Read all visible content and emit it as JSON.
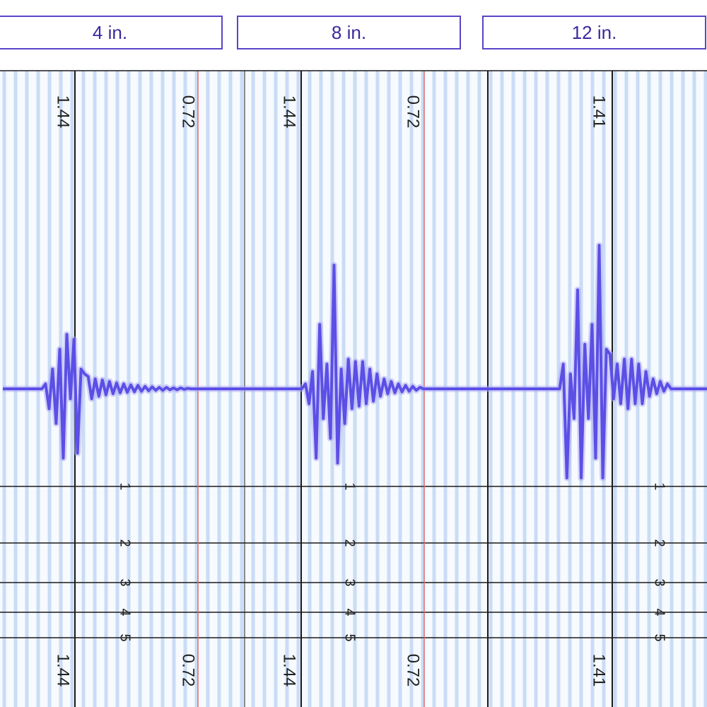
{
  "tabs": [
    {
      "label": "4 in."
    },
    {
      "label": "8 in."
    },
    {
      "label": "12 in."
    }
  ],
  "colors": {
    "waveform": "#5b4fe6",
    "waveform_glow": "#a9a3f5",
    "grid_minor": "#bcd3f2",
    "red_line": "#e06a6a",
    "dark_line": "#1a1a1a",
    "tab_border": "#5a45c8",
    "tab_text": "#3a2a9e"
  },
  "chart_data": [
    {
      "type": "line",
      "title": "4 in.",
      "top_labels": [
        "1.44",
        "0.72"
      ],
      "bottom_labels": [
        "1.44",
        "0.72"
      ],
      "depth_labels": [
        "1",
        "2",
        "3",
        "4",
        "5"
      ],
      "x": [
        0,
        5,
        10,
        15,
        20,
        25,
        30,
        35,
        40,
        45,
        50,
        55,
        60,
        65,
        70,
        75,
        80,
        85,
        90,
        95,
        100,
        105,
        110,
        115,
        120,
        125,
        130,
        135,
        140,
        145,
        150,
        155,
        160,
        165,
        170,
        175,
        180,
        185,
        190,
        195,
        200,
        205,
        210,
        215,
        220,
        225,
        230,
        235,
        240,
        245,
        250,
        255,
        260,
        265,
        270,
        275,
        280,
        285,
        290,
        295,
        300,
        305,
        310,
        315,
        320,
        325,
        330,
        335,
        340
      ],
      "y": [
        0,
        0,
        0,
        0,
        0,
        0,
        0,
        0,
        0,
        0,
        0,
        0,
        0.1,
        -0.4,
        0.4,
        -0.7,
        0.8,
        -1.4,
        1.1,
        -0.2,
        1.0,
        -1.3,
        0.4,
        0.3,
        0.25,
        -0.2,
        0.2,
        -0.15,
        0.18,
        -0.12,
        0.15,
        -0.1,
        0.12,
        -0.08,
        0.1,
        -0.07,
        0.08,
        -0.06,
        0.07,
        -0.05,
        0.05,
        -0.04,
        0.04,
        -0.03,
        0.03,
        -0.03,
        0.03,
        -0.02,
        0.02,
        -0.02,
        0.02,
        -0.01,
        0.01,
        0,
        0,
        0,
        0,
        0,
        0,
        0,
        0,
        0,
        0,
        0,
        0,
        0,
        0,
        0,
        0
      ],
      "ylim": [
        -2,
        2
      ]
    },
    {
      "type": "line",
      "title": "8 in.",
      "top_labels": [
        "1.44",
        "0.72"
      ],
      "bottom_labels": [
        "1.44",
        "0.72"
      ],
      "depth_labels": [
        "1",
        "2",
        "3",
        "4",
        "5"
      ],
      "x": [
        0,
        5,
        10,
        15,
        20,
        25,
        30,
        35,
        40,
        45,
        50,
        55,
        60,
        65,
        70,
        75,
        80,
        85,
        90,
        95,
        100,
        105,
        110,
        115,
        120,
        125,
        130,
        135,
        140,
        145,
        150,
        155,
        160,
        165,
        170,
        175,
        180,
        185,
        190,
        195,
        200,
        205,
        210,
        215,
        220,
        225,
        230,
        235,
        240,
        245,
        250,
        255,
        260,
        265,
        270,
        275,
        280,
        285,
        290,
        295,
        300,
        305,
        310,
        315,
        320,
        325,
        330,
        335,
        340
      ],
      "y": [
        0,
        0,
        0,
        0,
        0,
        0,
        0,
        0,
        0,
        0,
        0,
        0,
        0,
        0,
        0,
        0,
        0,
        0.1,
        -0.3,
        0.35,
        -1.4,
        1.3,
        -0.6,
        0.5,
        -1.0,
        2.5,
        -1.5,
        0.4,
        -0.7,
        0.6,
        -0.4,
        0.55,
        -0.35,
        0.55,
        -0.3,
        0.4,
        -0.25,
        0.3,
        -0.15,
        0.2,
        -0.1,
        0.15,
        -0.08,
        0.1,
        -0.06,
        0.07,
        -0.05,
        0.05,
        -0.03,
        0.03,
        0,
        0,
        0,
        0,
        0,
        0,
        0,
        0,
        0,
        0,
        0,
        0,
        0,
        0,
        0,
        0,
        0,
        0,
        0
      ],
      "ylim": [
        -2,
        2
      ]
    },
    {
      "type": "line",
      "title": "12 in.",
      "top_labels": [
        "1.41"
      ],
      "bottom_labels": [
        "1.41"
      ],
      "depth_labels": [
        "1",
        "2",
        "3",
        "4",
        "5"
      ],
      "x": [
        0,
        5,
        10,
        15,
        20,
        25,
        30,
        35,
        40,
        45,
        50,
        55,
        60,
        65,
        70,
        75,
        80,
        85,
        90,
        95,
        100,
        105,
        110,
        115,
        120,
        125,
        130,
        135,
        140,
        145,
        150,
        155,
        160,
        165,
        170,
        175,
        180,
        185,
        190,
        195,
        200,
        205,
        210,
        215,
        220,
        225,
        230,
        235,
        240,
        245,
        250,
        255,
        260,
        265,
        270,
        275,
        280,
        285,
        290,
        295,
        300,
        305
      ],
      "y": [
        0,
        0,
        0,
        0,
        0,
        0,
        0,
        0,
        0,
        0,
        0,
        0,
        0,
        0,
        0,
        0,
        0,
        0,
        0,
        0,
        0,
        0.5,
        -1.8,
        0.3,
        -0.6,
        2.0,
        -1.8,
        0.9,
        -0.6,
        1.3,
        -1.4,
        2.9,
        -1.8,
        0.8,
        0.7,
        -0.2,
        0.5,
        -0.3,
        0.6,
        -0.4,
        0.6,
        -0.3,
        0.5,
        -0.3,
        0.35,
        -0.15,
        0.2,
        -0.1,
        0.15,
        -0.05,
        0.1,
        0,
        0,
        0,
        0,
        0,
        0,
        0,
        0,
        0,
        0,
        0
      ],
      "ylim": [
        -2,
        2
      ]
    }
  ]
}
